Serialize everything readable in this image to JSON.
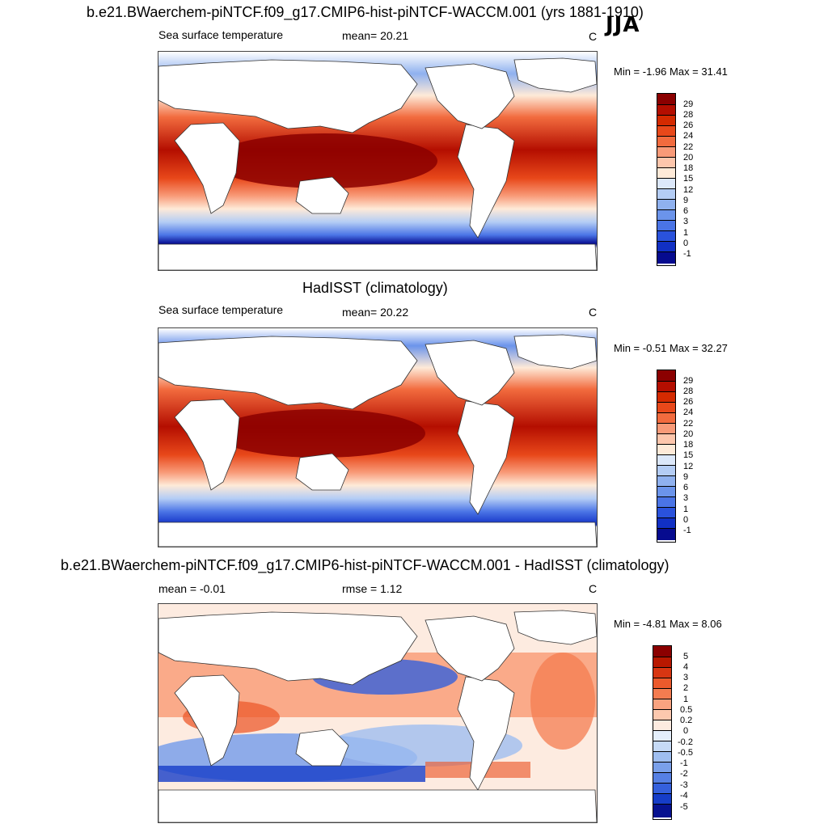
{
  "season": "JJA",
  "panels": [
    {
      "title": "b.e21.BWaerchem-piNTCF.f09_g17.CMIP6-hist-piNTCF-WACCM.001 (yrs 1881-1910)",
      "left_label": "Sea surface temperature",
      "center_label": "mean=  20.21",
      "unit": "C",
      "minmax": "Min =  -1.96 Max =  31.41",
      "colorbar": {
        "labels": [
          "29",
          "28",
          "26",
          "24",
          "22",
          "20",
          "18",
          "15",
          "12",
          "9",
          "6",
          "3",
          "1",
          "0",
          "-1"
        ],
        "colors": [
          "#8b0000",
          "#b40e00",
          "#d42a00",
          "#e8481a",
          "#f26b3e",
          "#f89a78",
          "#fdc6ac",
          "#feead8",
          "#dce8fa",
          "#b4cdf5",
          "#8fb1ef",
          "#6b94eb",
          "#4a74e6",
          "#2a52dc",
          "#1130c4",
          "#060b8f"
        ]
      }
    },
    {
      "title": "HadISST (climatology)",
      "left_label": "Sea surface temperature",
      "center_label": "mean=  20.22",
      "unit": "C",
      "minmax": "Min =  -0.51 Max =  32.27",
      "colorbar": {
        "labels": [
          "29",
          "28",
          "26",
          "24",
          "22",
          "20",
          "18",
          "15",
          "12",
          "9",
          "6",
          "3",
          "1",
          "0",
          "-1"
        ],
        "colors": [
          "#8b0000",
          "#b40e00",
          "#d42a00",
          "#e8481a",
          "#f26b3e",
          "#f89a78",
          "#fdc6ac",
          "#feead8",
          "#dce8fa",
          "#b4cdf5",
          "#8fb1ef",
          "#6b94eb",
          "#4a74e6",
          "#2a52dc",
          "#1130c4",
          "#060b8f"
        ]
      }
    },
    {
      "title": "b.e21.BWaerchem-piNTCF.f09_g17.CMIP6-hist-piNTCF-WACCM.001 - HadISST (climatology)",
      "left_label": "mean =  -0.01",
      "center_label": "rmse =   1.12",
      "unit": "C",
      "minmax": "Min =  -4.81 Max =   8.06",
      "colorbar": {
        "labels": [
          "5",
          "4",
          "3",
          "2",
          "1",
          "0.5",
          "0.2",
          "0",
          "-0.2",
          "-0.5",
          "-1",
          "-2",
          "-3",
          "-4",
          "-5"
        ],
        "colors": [
          "#8b0000",
          "#b81800",
          "#d83612",
          "#ec5a2c",
          "#f47c50",
          "#f9a380",
          "#fcc8ae",
          "#fdebe0",
          "#e4eefb",
          "#c6daf6",
          "#9fbef0",
          "#7aa0ea",
          "#5680e4",
          "#3560dc",
          "#163dc8",
          "#071290"
        ]
      }
    }
  ]
}
